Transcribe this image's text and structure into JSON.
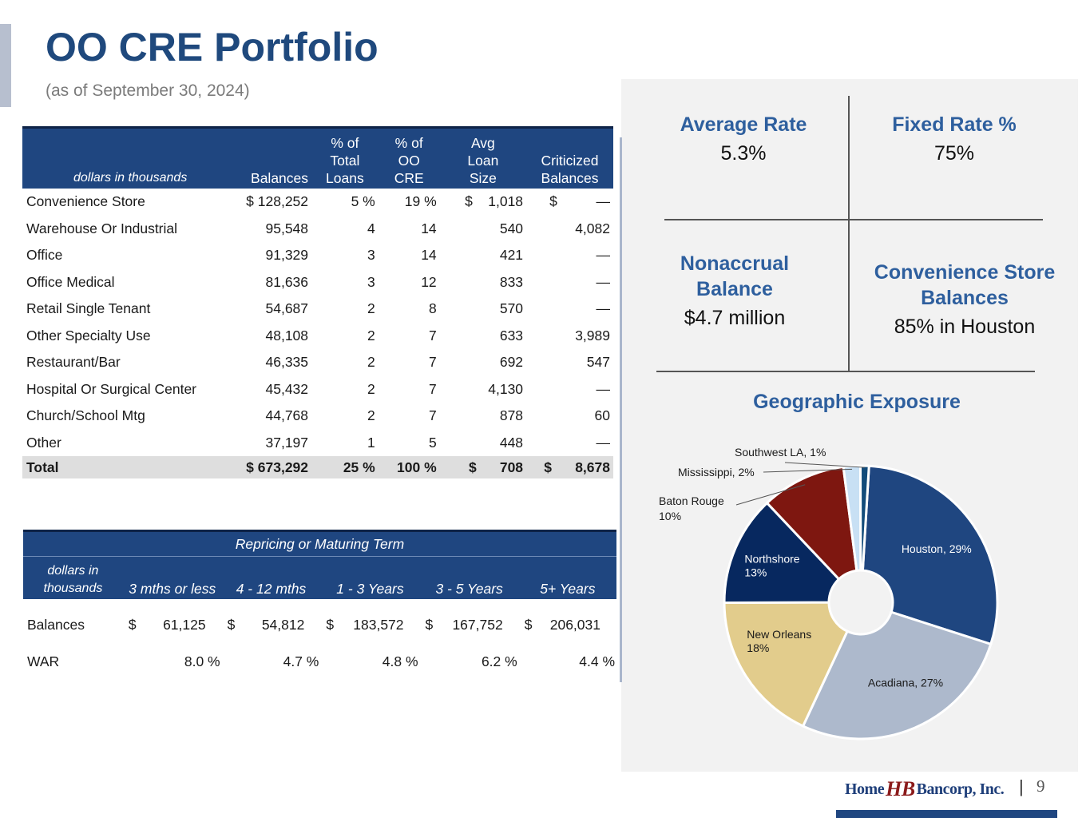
{
  "title": "OO CRE Portfolio",
  "subtitle": "(as of September 30, 2024)",
  "portfolio_table": {
    "headers": {
      "unit": "dollars in thousands",
      "balances": "Balances",
      "pct_total_loans": "% of Total Loans",
      "pct_oo_cre": "% of OO CRE",
      "avg_loan_size": "Avg Loan Size",
      "criticized": "Criticized Balances"
    },
    "rows": [
      {
        "label": "Convenience Store",
        "balances": "$ 128,252",
        "pct_total": "5 %",
        "pct_oo": "19 %",
        "avg": "$    1,018",
        "crit": "$          —"
      },
      {
        "label": "Warehouse Or Industrial",
        "balances": "95,548",
        "pct_total": "4",
        "pct_oo": "14",
        "avg": "540",
        "crit": "4,082"
      },
      {
        "label": "Office",
        "balances": "91,329",
        "pct_total": "3",
        "pct_oo": "14",
        "avg": "421",
        "crit": "—"
      },
      {
        "label": "Office Medical",
        "balances": "81,636",
        "pct_total": "3",
        "pct_oo": "12",
        "avg": "833",
        "crit": "—"
      },
      {
        "label": "Retail Single Tenant",
        "balances": "54,687",
        "pct_total": "2",
        "pct_oo": "8",
        "avg": "570",
        "crit": "—"
      },
      {
        "label": "Other Specialty Use",
        "balances": "48,108",
        "pct_total": "2",
        "pct_oo": "7",
        "avg": "633",
        "crit": "3,989"
      },
      {
        "label": "Restaurant/Bar",
        "balances": "46,335",
        "pct_total": "2",
        "pct_oo": "7",
        "avg": "692",
        "crit": "547"
      },
      {
        "label": "Hospital Or Surgical Center",
        "balances": "45,432",
        "pct_total": "2",
        "pct_oo": "7",
        "avg": "4,130",
        "crit": "—"
      },
      {
        "label": "Church/School Mtg",
        "balances": "44,768",
        "pct_total": "2",
        "pct_oo": "7",
        "avg": "878",
        "crit": "60"
      },
      {
        "label": "Other",
        "balances": "37,197",
        "pct_total": "1",
        "pct_oo": "5",
        "avg": "448",
        "crit": "—"
      }
    ],
    "total": {
      "label": "Total",
      "balances": "$ 673,292",
      "pct_total": "25 %",
      "pct_oo": "100 %",
      "avg": "$      708",
      "crit": "$      8,678"
    }
  },
  "repricing_table": {
    "group_header": "Repricing or Maturing Term",
    "unit": "dollars in thousands",
    "columns": [
      "3 mths or less",
      "4 - 12 mths",
      "1 - 3 Years",
      "3 - 5 Years",
      "5+ Years"
    ],
    "currency_symbol": "$",
    "balances_label": "Balances",
    "balances": [
      "61,125",
      "54,812",
      "183,572",
      "167,752",
      "206,031"
    ],
    "war_label": "WAR",
    "war": [
      "8.0 %",
      "4.7 %",
      "4.8 %",
      "6.2 %",
      "4.4 %"
    ]
  },
  "kpis": {
    "average_rate": {
      "label": "Average Rate",
      "value": "5.3%"
    },
    "fixed_rate": {
      "label": "Fixed Rate %",
      "value": "75%"
    },
    "nonaccrual": {
      "label": "Nonaccrual Balance",
      "value": "$4.7 million"
    },
    "convenience_store": {
      "label": "Convenience Store Balances",
      "value": "85% in Houston"
    }
  },
  "chart_data": {
    "type": "pie",
    "title": "Geographic Exposure",
    "donut": true,
    "slices": [
      {
        "name": "Houston",
        "value": 29,
        "label": "Houston, 29%",
        "color": "#1f4680"
      },
      {
        "name": "Acadiana",
        "value": 27,
        "label": "Acadiana, 27%",
        "color": "#adb9cc"
      },
      {
        "name": "New Orleans",
        "value": 18,
        "label": "New Orleans 18%",
        "color": "#e2cc8c"
      },
      {
        "name": "Northshore",
        "value": 13,
        "label": "Northshore 13%",
        "color": "#07285f"
      },
      {
        "name": "Baton Rouge",
        "value": 10,
        "label": "Baton Rouge 10%",
        "color": "#7e1710"
      },
      {
        "name": "Mississippi",
        "value": 2,
        "label": "Mississippi, 2%",
        "color": "#c8e0f4"
      },
      {
        "name": "Southwest LA",
        "value": 1,
        "label": "Southwest LA, 1%",
        "color": "#124b7a"
      }
    ]
  },
  "footer": {
    "logo_home": "Home",
    "logo_mark": "HB",
    "logo_bancorp": "Bancorp, Inc.",
    "separator": "|",
    "page_number": "9"
  },
  "colors": {
    "brand": "#1f4680",
    "title": "#1f497d",
    "accent": "#2e5f9e"
  }
}
